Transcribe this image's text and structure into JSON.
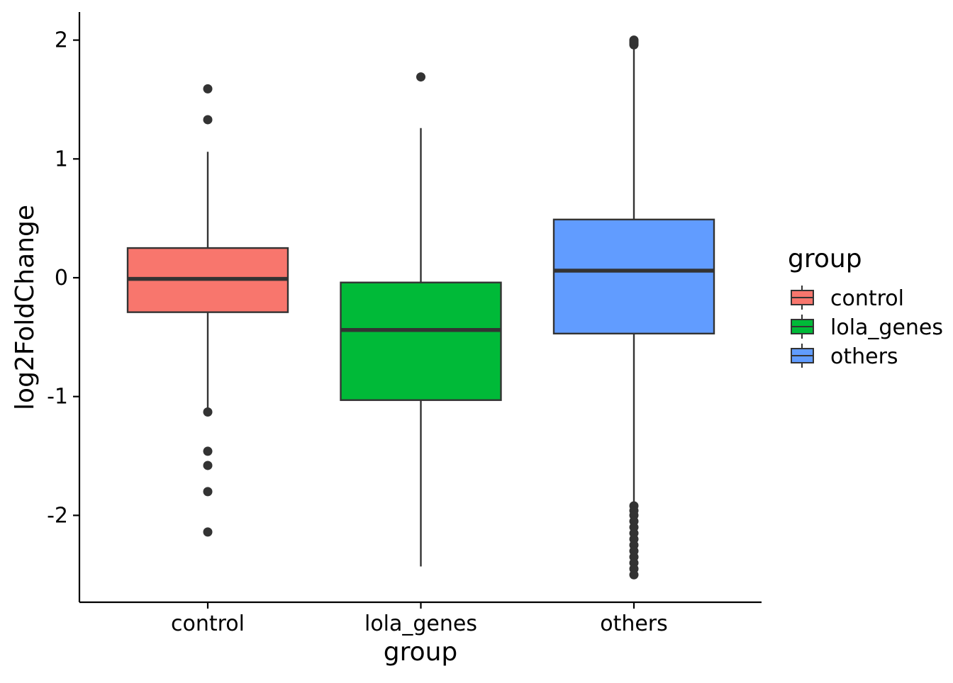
{
  "chart_data": {
    "type": "boxplot",
    "title": "",
    "xlabel": "group",
    "ylabel": "log2FoldChange",
    "ylim": [
      -2.5,
      2.2
    ],
    "yticks": [
      2,
      1,
      0,
      -1,
      -2
    ],
    "ytick_labels": [
      "2",
      "1",
      "0",
      "-1",
      "-2"
    ],
    "categories": [
      "control",
      "lola_genes",
      "others"
    ],
    "colors": [
      "#F8766D",
      "#00BA38",
      "#619CFF"
    ],
    "grid": false,
    "legend": {
      "title": "group",
      "position": "right",
      "entries": [
        "control",
        "lola_genes",
        "others"
      ]
    },
    "series": [
      {
        "category": "control",
        "whisker_low": -1.1,
        "q1": -0.29,
        "median": -0.01,
        "q3": 0.25,
        "whisker_high": 1.06,
        "outliers": [
          1.59,
          1.33,
          -1.13,
          -1.46,
          -1.58,
          -1.8,
          -2.14
        ]
      },
      {
        "category": "lola_genes",
        "whisker_low": -2.43,
        "q1": -1.03,
        "median": -0.44,
        "q3": -0.04,
        "whisker_high": 1.26,
        "outliers": [
          1.69
        ]
      },
      {
        "category": "others",
        "whisker_low": -1.9,
        "q1": -0.47,
        "median": 0.06,
        "q3": 0.49,
        "whisker_high": 1.95,
        "outliers": [
          1.96,
          1.97,
          1.98,
          1.99,
          2.0,
          -1.92,
          -1.96,
          -2.0,
          -2.05,
          -2.1,
          -2.15,
          -2.2,
          -2.25,
          -2.3,
          -2.35,
          -2.4,
          -2.45,
          -2.5
        ]
      }
    ]
  }
}
